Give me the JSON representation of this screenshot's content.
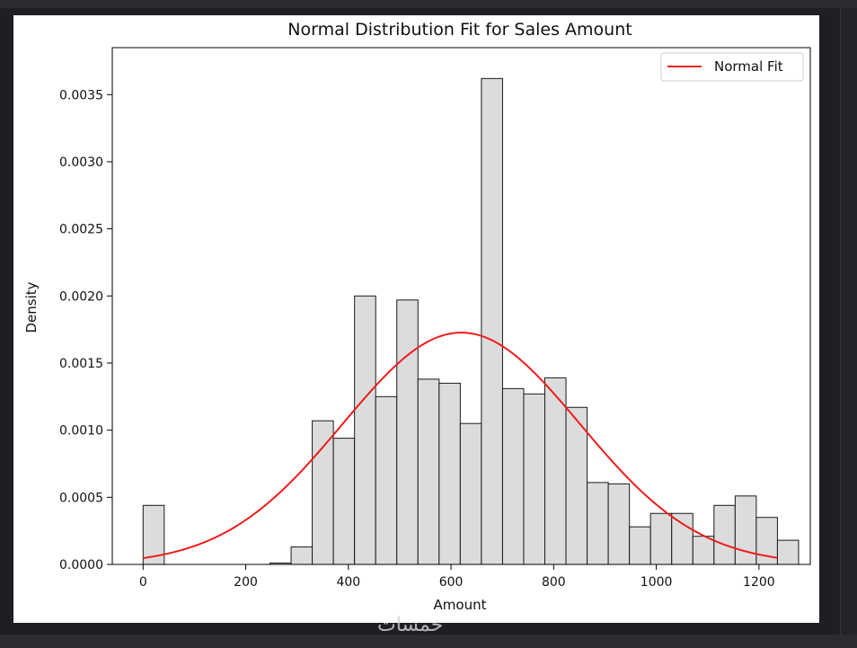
{
  "chart_data": {
    "type": "bar",
    "title": "Normal Distribution Fit for Sales Amount",
    "xlabel": "Amount",
    "ylabel": "Density",
    "xlim": [
      -60,
      1300
    ],
    "ylim": [
      0,
      0.00385
    ],
    "xticks": [
      0,
      200,
      400,
      600,
      800,
      1000,
      1200
    ],
    "yticks": [
      0,
      0.0005,
      0.001,
      0.0015,
      0.002,
      0.0025,
      0.003,
      0.0035
    ],
    "ytick_labels": [
      "0.0000",
      "0.0005",
      "0.0010",
      "0.0015",
      "0.0020",
      "0.0025",
      "0.0030",
      "0.0035"
    ],
    "grid": false,
    "legend_position": "top-right",
    "histogram": {
      "bin_start": 0,
      "bin_width": 41.2,
      "densities": [
        0.00044,
        0,
        0,
        0,
        0,
        0,
        1e-05,
        0.00013,
        0.00107,
        0.00094,
        0.002,
        0.00125,
        0.00197,
        0.00138,
        0.00135,
        0.00105,
        0.00362,
        0.00131,
        0.00127,
        0.00139,
        0.00117,
        0.00061,
        0.0006,
        0.00028,
        0.00038,
        0.00038,
        0.00021,
        0.00044,
        0.00051,
        0.00035,
        0.00018
      ],
      "fill": "#dcdcdc",
      "edge": "#1a1a1a"
    },
    "series": [
      {
        "name": "Normal Fit",
        "type": "line",
        "mean": 620,
        "std": 231,
        "x_range": [
          0,
          1236
        ],
        "color": "#ee1c1c"
      }
    ]
  },
  "watermark_text": "خمسات"
}
